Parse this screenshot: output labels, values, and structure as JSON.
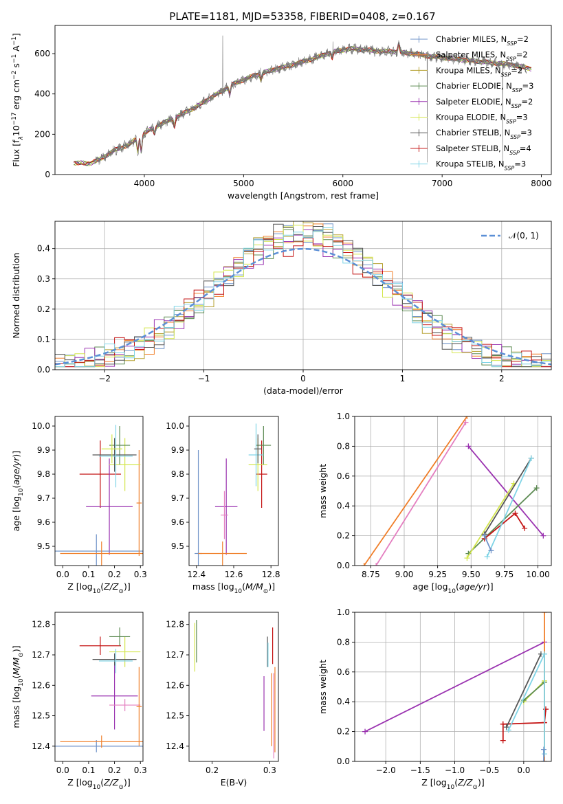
{
  "figure_title": "PLATE=1181, MJD=53358, FIBERID=0408, z=0.167",
  "colors": {
    "chabrier_miles": "#6f93c8",
    "salpeter_miles": "#f07f2a",
    "kroupa_miles": "#b5a030",
    "chabrier_elodie": "#5c8a52",
    "salpeter_elodie": "#9a32b0",
    "kroupa_elodie": "#d4e64d",
    "chabrier_stelib": "#555555",
    "salpeter_stelib": "#c41414",
    "kroupa_stelib": "#7fd4e6",
    "pink": "#e47fc0",
    "data": "#777777",
    "gauss": "#5b8fd6",
    "grid": "#b0b0b0"
  },
  "chart_data": [
    {
      "id": "spectrum",
      "type": "line",
      "title": "PLATE=1181, MJD=53358, FIBERID=0408, z=0.167",
      "xlabel": "wavelength [Angstrom, rest frame]",
      "ylabel": "Flux [f$_\\lambda$ 10$^{-17}$ erg cm$^{-2}$ s$^{-1}$ A$^{-1}$]",
      "ylabel_parts": [
        "Flux [f",
        "λ",
        "10",
        "−17",
        " erg cm",
        "−2",
        " s",
        "−1",
        " A",
        "−1",
        "]"
      ],
      "xlim": [
        3100,
        8100
      ],
      "ylim": [
        0,
        740
      ],
      "xticks": [
        4000,
        5000,
        6000,
        7000,
        8000
      ],
      "yticks": [
        0,
        200,
        400,
        600
      ],
      "grid": false,
      "legend_position": "right",
      "legend": [
        {
          "label": "Chabrier MILES, N",
          "sub": "SSP",
          "suffix": "=2",
          "color_key": "chabrier_miles"
        },
        {
          "label": "Salpeter MILES, N",
          "sub": "SSP",
          "suffix": "=2",
          "color_key": "salpeter_miles"
        },
        {
          "label": "Kroupa MILES, N",
          "sub": "SSP",
          "suffix": "=2",
          "color_key": "kroupa_miles"
        },
        {
          "label": "Chabrier ELODIE, N",
          "sub": "SSP",
          "suffix": "=3",
          "color_key": "chabrier_elodie"
        },
        {
          "label": "Salpeter ELODIE, N",
          "sub": "SSP",
          "suffix": "=2",
          "color_key": "salpeter_elodie"
        },
        {
          "label": "Kroupa ELODIE, N",
          "sub": "SSP",
          "suffix": "=3",
          "color_key": "kroupa_elodie"
        },
        {
          "label": "Chabrier STELIB, N",
          "sub": "SSP",
          "suffix": "=3",
          "color_key": "chabrier_stelib"
        },
        {
          "label": "Salpeter STELIB, N",
          "sub": "SSP",
          "suffix": "=4",
          "color_key": "salpeter_stelib"
        },
        {
          "label": "Kroupa STELIB, N",
          "sub": "SSP",
          "suffix": "=3",
          "color_key": "kroupa_stelib"
        }
      ],
      "continuum": [
        [
          3300,
          58
        ],
        [
          3450,
          55
        ],
        [
          3550,
          75
        ],
        [
          3700,
          120
        ],
        [
          3850,
          150
        ],
        [
          3950,
          190
        ],
        [
          4100,
          235
        ],
        [
          4300,
          280
        ],
        [
          4500,
          330
        ],
        [
          4700,
          390
        ],
        [
          4900,
          450
        ],
        [
          5100,
          490
        ],
        [
          5300,
          520
        ],
        [
          5500,
          545
        ],
        [
          5700,
          575
        ],
        [
          5900,
          610
        ],
        [
          6100,
          625
        ],
        [
          6300,
          615
        ],
        [
          6500,
          610
        ],
        [
          6700,
          600
        ],
        [
          6900,
          585
        ],
        [
          7100,
          575
        ],
        [
          7300,
          565
        ],
        [
          7500,
          555
        ],
        [
          7700,
          545
        ],
        [
          7900,
          525
        ]
      ],
      "absorption_lines": [
        [
          3934,
          70
        ],
        [
          3969,
          80
        ],
        [
          4102,
          30
        ],
        [
          4304,
          40
        ],
        [
          4861,
          40
        ],
        [
          5175,
          30
        ],
        [
          5893,
          30
        ],
        [
          6563,
          -40
        ]
      ],
      "spikes": [
        [
          4790,
          690
        ],
        [
          5170,
          530
        ],
        [
          5900,
          660
        ],
        [
          6850,
          60
        ],
        [
          7610,
          40
        ]
      ]
    },
    {
      "id": "residuals",
      "type": "histogram",
      "xlabel": "(data-model)/error",
      "ylabel": "Normed distribution",
      "xlim": [
        -2.5,
        2.5
      ],
      "ylim": [
        0,
        0.49
      ],
      "xticks": [
        -2,
        -1,
        0,
        1,
        2
      ],
      "yticks": [
        0.0,
        0.1,
        0.2,
        0.3,
        0.4
      ],
      "grid": true,
      "legend_position": "top-right",
      "gaussian": {
        "label": "𝒩(0, 1)",
        "mean": 0,
        "sigma": 1
      },
      "bin_edges": {
        "start": -2.5,
        "width": 0.1,
        "count": 50
      },
      "series_color_keys": [
        "chabrier_miles",
        "salpeter_miles",
        "kroupa_miles",
        "chabrier_elodie",
        "salpeter_elodie",
        "kroupa_elodie",
        "chabrier_stelib",
        "salpeter_stelib",
        "kroupa_stelib"
      ],
      "series_sigma": [
        0.86,
        0.87,
        0.85,
        0.9,
        0.92,
        0.88,
        0.86,
        0.95,
        0.89
      ]
    },
    {
      "id": "age_vs_Z",
      "type": "scatter",
      "xlabel": "Z [log$_{10}$(Z/Z$_\\odot$)]",
      "ylabel": "age  [log$_{10}$(age/yr)]",
      "xlim": [
        -0.03,
        0.31
      ],
      "ylim": [
        9.42,
        10.04
      ],
      "xticks": [
        0.0,
        0.1,
        0.2,
        0.3
      ],
      "yticks": [
        9.5,
        9.6,
        9.7,
        9.8,
        9.9,
        10.0
      ],
      "grid": false,
      "points": [
        {
          "x": 0.145,
          "y": 9.8,
          "xerr": 0.08,
          "yerr": 0.14,
          "color_key": "salpeter_stelib"
        },
        {
          "x": 0.18,
          "y": 9.665,
          "xerr": 0.09,
          "yerr": 0.2,
          "color_key": "salpeter_elodie"
        },
        {
          "x": 0.13,
          "y": 9.48,
          "xerr": 0.18,
          "yerr": 0.07,
          "color_key": "chabrier_miles"
        },
        {
          "x": 0.15,
          "y": 9.47,
          "xerr": 0.16,
          "yerr": 0.05,
          "color_key": "salpeter_miles"
        },
        {
          "x": 0.295,
          "y": 9.68,
          "xerr": 0.01,
          "yerr": 0.22,
          "color_key": "salpeter_miles"
        },
        {
          "x": 0.24,
          "y": 9.84,
          "xerr": 0.06,
          "yerr": 0.11,
          "color_key": "kroupa_elodie"
        },
        {
          "x": 0.22,
          "y": 9.92,
          "xerr": 0.04,
          "yerr": 0.08,
          "color_key": "chabrier_elodie"
        },
        {
          "x": 0.2,
          "y": 9.88,
          "xerr": 0.085,
          "yerr": 0.07,
          "color_key": "chabrier_stelib"
        },
        {
          "x": 0.205,
          "y": 9.875,
          "xerr": 0.065,
          "yerr": 0.13,
          "color_key": "kroupa_stelib"
        },
        {
          "x": 0.19,
          "y": 9.905,
          "xerr": 0.04,
          "yerr": 0.06,
          "color_key": "kroupa_elodie"
        }
      ]
    },
    {
      "id": "age_vs_mass",
      "type": "scatter",
      "xlabel": "mass [log$_{10}$(M/M$_\\odot$)]",
      "ylabel": "",
      "xlim": [
        12.36,
        12.84
      ],
      "ylim": [
        9.42,
        10.04
      ],
      "xticks": [
        12.4,
        12.6,
        12.8
      ],
      "yticks": [
        9.5,
        9.6,
        9.7,
        9.8,
        9.9,
        10.0
      ],
      "grid": false,
      "points": [
        {
          "x": 12.75,
          "y": 9.8,
          "xerr": 0.03,
          "yerr": 0.14,
          "color_key": "salpeter_stelib"
        },
        {
          "x": 12.56,
          "y": 9.665,
          "xerr": 0.06,
          "yerr": 0.2,
          "color_key": "salpeter_elodie"
        },
        {
          "x": 12.55,
          "y": 9.63,
          "xerr": 0.02,
          "yerr": 0.1,
          "color_key": "pink"
        },
        {
          "x": 12.41,
          "y": 9.47,
          "xerr": 0.02,
          "yerr": 0.43,
          "color_key": "chabrier_miles"
        },
        {
          "x": 12.54,
          "y": 9.47,
          "xerr": 0.13,
          "yerr": 0.05,
          "color_key": "salpeter_miles"
        },
        {
          "x": 12.73,
          "y": 9.84,
          "xerr": 0.05,
          "yerr": 0.11,
          "color_key": "kroupa_elodie"
        },
        {
          "x": 12.76,
          "y": 9.92,
          "xerr": 0.04,
          "yerr": 0.08,
          "color_key": "chabrier_elodie"
        },
        {
          "x": 12.72,
          "y": 9.88,
          "xerr": 0.04,
          "yerr": 0.13,
          "color_key": "kroupa_stelib"
        },
        {
          "x": 12.73,
          "y": 9.905,
          "xerr": 0.02,
          "yerr": 0.06,
          "color_key": "chabrier_stelib"
        }
      ]
    },
    {
      "id": "weight_vs_age",
      "type": "line",
      "xlabel": "age  [log$_{10}$(age/yr)]",
      "ylabel": "mass weight",
      "xlim": [
        8.63,
        10.1
      ],
      "ylim": [
        0,
        1.0
      ],
      "xticks": [
        8.75,
        9.0,
        9.25,
        9.5,
        9.75,
        10.0
      ],
      "yticks": [
        0.0,
        0.2,
        0.4,
        0.6,
        0.8,
        1.0
      ],
      "grid": true,
      "series": [
        {
          "color_key": "salpeter_miles",
          "points": [
            [
              8.7,
              0.0
            ],
            [
              9.47,
              1.0
            ]
          ]
        },
        {
          "color_key": "pink",
          "points": [
            [
              8.79,
              0.0
            ],
            [
              9.46,
              0.96
            ]
          ]
        },
        {
          "color_key": "salpeter_elodie",
          "points": [
            [
              9.48,
              0.8
            ],
            [
              10.04,
              0.2
            ]
          ]
        },
        {
          "color_key": "chabrier_elodie",
          "points": [
            [
              9.48,
              0.08
            ],
            [
              9.99,
              0.52
            ]
          ]
        },
        {
          "color_key": "kroupa_elodie",
          "points": [
            [
              9.47,
              0.05
            ],
            [
              9.82,
              0.55
            ]
          ]
        },
        {
          "color_key": "salpeter_stelib",
          "points": [
            [
              9.6,
              0.18
            ],
            [
              9.83,
              0.35
            ],
            [
              9.9,
              0.25
            ]
          ]
        },
        {
          "color_key": "chabrier_stelib",
          "points": [
            [
              9.6,
              0.21
            ],
            [
              9.95,
              0.72
            ]
          ]
        },
        {
          "color_key": "kroupa_stelib",
          "points": [
            [
              9.62,
              0.06
            ],
            [
              9.95,
              0.72
            ]
          ]
        },
        {
          "color_key": "chabrier_miles",
          "points": [
            [
              9.6,
              0.2
            ],
            [
              9.65,
              0.1
            ]
          ]
        }
      ]
    },
    {
      "id": "mass_vs_Z",
      "type": "scatter",
      "xlabel": "Z [log$_{10}$(Z/Z$_\\odot$)]",
      "ylabel": "mass [log$_{10}$(M/M$_\\odot$)]",
      "xlim": [
        -0.03,
        0.31
      ],
      "ylim": [
        12.35,
        12.84
      ],
      "xticks": [
        0.0,
        0.1,
        0.2,
        0.3
      ],
      "yticks": [
        12.4,
        12.5,
        12.6,
        12.7,
        12.8
      ],
      "grid": false,
      "points": [
        {
          "x": 0.145,
          "y": 12.73,
          "xerr": 0.08,
          "yerr": 0.03,
          "color_key": "salpeter_stelib"
        },
        {
          "x": 0.2,
          "y": 12.565,
          "xerr": 0.09,
          "yerr": 0.11,
          "color_key": "salpeter_elodie"
        },
        {
          "x": 0.24,
          "y": 12.535,
          "xerr": 0.06,
          "yerr": 0.02,
          "color_key": "pink"
        },
        {
          "x": 0.13,
          "y": 12.4,
          "xerr": 0.18,
          "yerr": 0.02,
          "color_key": "chabrier_miles"
        },
        {
          "x": 0.15,
          "y": 12.415,
          "xerr": 0.16,
          "yerr": 0.02,
          "color_key": "salpeter_miles"
        },
        {
          "x": 0.295,
          "y": 12.53,
          "xerr": 0.01,
          "yerr": 0.13,
          "color_key": "salpeter_miles"
        },
        {
          "x": 0.24,
          "y": 12.71,
          "xerr": 0.06,
          "yerr": 0.05,
          "color_key": "kroupa_elodie"
        },
        {
          "x": 0.22,
          "y": 12.76,
          "xerr": 0.04,
          "yerr": 0.03,
          "color_key": "chabrier_elodie"
        },
        {
          "x": 0.2,
          "y": 12.685,
          "xerr": 0.085,
          "yerr": 0.02,
          "color_key": "chabrier_stelib"
        },
        {
          "x": 0.205,
          "y": 12.68,
          "xerr": 0.065,
          "yerr": 0.04,
          "color_key": "kroupa_stelib"
        }
      ]
    },
    {
      "id": "mass_vs_ebv",
      "type": "scatter",
      "xlabel": "E(B-V)",
      "ylabel": "",
      "xlim": [
        0.16,
        0.315
      ],
      "ylim": [
        12.35,
        12.84
      ],
      "xticks": [
        0.2,
        0.3
      ],
      "yticks": [
        12.4,
        12.5,
        12.6,
        12.7,
        12.8
      ],
      "grid": false,
      "points": [
        {
          "x": 0.17,
          "y": 12.725,
          "xerr": 0,
          "yerr": 0.08,
          "color_key": "kroupa_elodie"
        },
        {
          "x": 0.173,
          "y": 12.745,
          "xerr": 0,
          "yerr": 0.07,
          "color_key": "chabrier_elodie"
        },
        {
          "x": 0.29,
          "y": 12.54,
          "xerr": 0,
          "yerr": 0.09,
          "color_key": "salpeter_elodie"
        },
        {
          "x": 0.296,
          "y": 12.71,
          "xerr": 0,
          "yerr": 0.05,
          "color_key": "chabrier_stelib"
        },
        {
          "x": 0.297,
          "y": 12.7,
          "xerr": 0,
          "yerr": 0.04,
          "color_key": "kroupa_stelib"
        },
        {
          "x": 0.305,
          "y": 12.73,
          "xerr": 0,
          "yerr": 0.06,
          "color_key": "salpeter_stelib"
        },
        {
          "x": 0.303,
          "y": 12.52,
          "xerr": 0,
          "yerr": 0.12,
          "color_key": "salpeter_miles"
        },
        {
          "x": 0.307,
          "y": 12.5,
          "xerr": 0,
          "yerr": 0.14,
          "color_key": "pink"
        },
        {
          "x": 0.309,
          "y": 12.52,
          "xerr": 0,
          "yerr": 0.14,
          "color_key": "salpeter_miles"
        }
      ]
    },
    {
      "id": "weight_vs_Z",
      "type": "line",
      "xlabel": "Z [log$_{10}$(Z/Z$_\\odot$)]",
      "ylabel": "mass weight",
      "xlim": [
        -2.45,
        0.4
      ],
      "ylim": [
        0,
        1.0
      ],
      "xticks": [
        -2.0,
        -1.5,
        -1.0,
        -0.5,
        0.0
      ],
      "yticks": [
        0.0,
        0.2,
        0.4,
        0.6,
        0.8,
        1.0
      ],
      "grid": true,
      "series": [
        {
          "color_key": "salpeter_elodie",
          "points": [
            [
              -2.3,
              0.2
            ],
            [
              0.3,
              0.8
            ]
          ]
        },
        {
          "color_key": "salpeter_stelib",
          "points": [
            [
              -0.3,
              0.25
            ],
            [
              0.3,
              0.26
            ]
          ]
        },
        {
          "color_key": "salpeter_stelib",
          "points": [
            [
              -0.3,
              0.14
            ],
            [
              -0.3,
              0.25
            ]
          ]
        },
        {
          "color_key": "chabrier_stelib",
          "points": [
            [
              -0.25,
              0.23
            ],
            [
              0.25,
              0.72
            ]
          ]
        },
        {
          "color_key": "kroupa_elodie",
          "points": [
            [
              0.0,
              0.4
            ],
            [
              0.3,
              0.54
            ]
          ]
        },
        {
          "color_key": "chabrier_elodie",
          "points": [
            [
              0.0,
              0.41
            ],
            [
              0.3,
              0.53
            ]
          ]
        },
        {
          "color_key": "kroupa_stelib",
          "points": [
            [
              -0.22,
              0.21
            ],
            [
              0.3,
              0.72
            ]
          ]
        },
        {
          "color_key": "salpeter_miles",
          "points": [
            [
              0.3,
              0.0
            ],
            [
              0.3,
              1.0
            ]
          ]
        },
        {
          "color_key": "salpeter_stelib",
          "points": [
            [
              0.3,
              0.26
            ],
            [
              0.32,
              0.35
            ]
          ]
        },
        {
          "color_key": "kroupa_stelib",
          "points": [
            [
              0.3,
              0.05
            ],
            [
              0.3,
              0.72
            ]
          ]
        },
        {
          "color_key": "chabrier_miles",
          "points": [
            [
              0.29,
              0.0
            ],
            [
              0.29,
              0.08
            ]
          ]
        }
      ]
    }
  ]
}
